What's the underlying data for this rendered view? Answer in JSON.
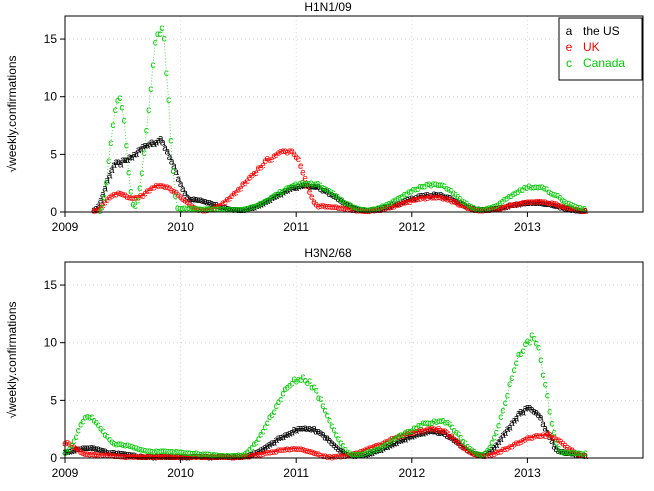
{
  "chart_data": [
    {
      "type": "scatter",
      "title": "H1N1/09",
      "ylabel": "weekly.confirmations",
      "ylabel_prefix": "√",
      "xlim": [
        2009.0,
        2014.0
      ],
      "ylim": [
        0,
        17
      ],
      "xticks": [
        "2009",
        "2010",
        "2011",
        "2012",
        "2013"
      ],
      "yticks": [
        0,
        5,
        10,
        15
      ],
      "grid": true,
      "legend": {
        "placement": "top-right",
        "entries": [
          {
            "symbol": "a",
            "label": "the US",
            "color": "#000000"
          },
          {
            "symbol": "e",
            "label": "UK",
            "color": "#ff0000"
          },
          {
            "symbol": "c",
            "label": "Canada",
            "color": "#00cc00"
          }
        ]
      },
      "series": [
        {
          "name": "the US",
          "symbol": "a",
          "color": "#000000",
          "peaks": [
            {
              "x": 2009.25,
              "y": 0.2
            },
            {
              "x": 2009.45,
              "y": 4.2
            },
            {
              "x": 2009.8,
              "y": 6.2
            },
            {
              "x": 2010.1,
              "y": 1.1
            },
            {
              "x": 2010.5,
              "y": 0.2
            },
            {
              "x": 2011.1,
              "y": 2.3
            },
            {
              "x": 2011.6,
              "y": 0.15
            },
            {
              "x": 2012.2,
              "y": 1.5
            },
            {
              "x": 2012.6,
              "y": 0.2
            },
            {
              "x": 2013.05,
              "y": 0.8
            },
            {
              "x": 2013.5,
              "y": 0.1
            }
          ]
        },
        {
          "name": "UK",
          "symbol": "e",
          "color": "#ff0000",
          "peaks": [
            {
              "x": 2009.25,
              "y": 0.1
            },
            {
              "x": 2009.45,
              "y": 1.6
            },
            {
              "x": 2009.6,
              "y": 1.2
            },
            {
              "x": 2009.82,
              "y": 2.3
            },
            {
              "x": 2010.2,
              "y": 0.15
            },
            {
              "x": 2010.95,
              "y": 5.3
            },
            {
              "x": 2011.2,
              "y": 0.5
            },
            {
              "x": 2011.6,
              "y": 0.1
            },
            {
              "x": 2012.2,
              "y": 1.3
            },
            {
              "x": 2012.6,
              "y": 0.15
            },
            {
              "x": 2013.1,
              "y": 0.9
            },
            {
              "x": 2013.5,
              "y": 0.1
            }
          ]
        },
        {
          "name": "Canada",
          "symbol": "c",
          "color": "#00cc00",
          "peaks": [
            {
              "x": 2009.3,
              "y": 0.1
            },
            {
              "x": 2009.47,
              "y": 9.8
            },
            {
              "x": 2009.6,
              "y": 0.5
            },
            {
              "x": 2009.83,
              "y": 16.0
            },
            {
              "x": 2009.98,
              "y": 0.3
            },
            {
              "x": 2010.5,
              "y": 0.2
            },
            {
              "x": 2011.1,
              "y": 2.5
            },
            {
              "x": 2011.6,
              "y": 0.2
            },
            {
              "x": 2012.2,
              "y": 2.4
            },
            {
              "x": 2012.6,
              "y": 0.2
            },
            {
              "x": 2013.05,
              "y": 2.2
            },
            {
              "x": 2013.5,
              "y": 0.3
            }
          ]
        }
      ]
    },
    {
      "type": "scatter",
      "title": "H3N2/68",
      "ylabel": "weekly.confirmations",
      "ylabel_prefix": "√",
      "xlim": [
        2009.0,
        2014.0
      ],
      "ylim": [
        0,
        17
      ],
      "xticks": [
        "2009",
        "2010",
        "2011",
        "2012",
        "2013"
      ],
      "yticks": [
        0,
        5,
        10,
        15
      ],
      "grid": true,
      "series": [
        {
          "name": "the US",
          "symbol": "a",
          "color": "#000000",
          "peaks": [
            {
              "x": 2009.0,
              "y": 0.5
            },
            {
              "x": 2009.2,
              "y": 0.9
            },
            {
              "x": 2009.45,
              "y": 0.4
            },
            {
              "x": 2009.7,
              "y": 0.1
            },
            {
              "x": 2010.5,
              "y": 0.1
            },
            {
              "x": 2011.1,
              "y": 2.6
            },
            {
              "x": 2011.5,
              "y": 0.2
            },
            {
              "x": 2012.2,
              "y": 2.3
            },
            {
              "x": 2012.6,
              "y": 0.3
            },
            {
              "x": 2013.03,
              "y": 4.3
            },
            {
              "x": 2013.3,
              "y": 0.5
            },
            {
              "x": 2013.5,
              "y": 0.2
            }
          ]
        },
        {
          "name": "UK",
          "symbol": "e",
          "color": "#ff0000",
          "peaks": [
            {
              "x": 2009.0,
              "y": 1.3
            },
            {
              "x": 2009.2,
              "y": 0.3
            },
            {
              "x": 2009.6,
              "y": 0.1
            },
            {
              "x": 2010.5,
              "y": 0.1
            },
            {
              "x": 2011.0,
              "y": 0.8
            },
            {
              "x": 2011.3,
              "y": 0.1
            },
            {
              "x": 2012.2,
              "y": 2.5
            },
            {
              "x": 2012.6,
              "y": 0.2
            },
            {
              "x": 2013.15,
              "y": 2.0
            },
            {
              "x": 2013.5,
              "y": 0.2
            }
          ]
        },
        {
          "name": "Canada",
          "symbol": "c",
          "color": "#00cc00",
          "peaks": [
            {
              "x": 2009.0,
              "y": 0.5
            },
            {
              "x": 2009.2,
              "y": 3.5
            },
            {
              "x": 2009.45,
              "y": 1.2
            },
            {
              "x": 2009.75,
              "y": 0.6
            },
            {
              "x": 2010.5,
              "y": 0.2
            },
            {
              "x": 2011.05,
              "y": 6.9
            },
            {
              "x": 2011.5,
              "y": 0.3
            },
            {
              "x": 2012.25,
              "y": 3.2
            },
            {
              "x": 2012.6,
              "y": 0.3
            },
            {
              "x": 2013.04,
              "y": 10.3
            },
            {
              "x": 2013.3,
              "y": 0.5
            },
            {
              "x": 2013.5,
              "y": 0.4
            }
          ]
        }
      ]
    }
  ]
}
